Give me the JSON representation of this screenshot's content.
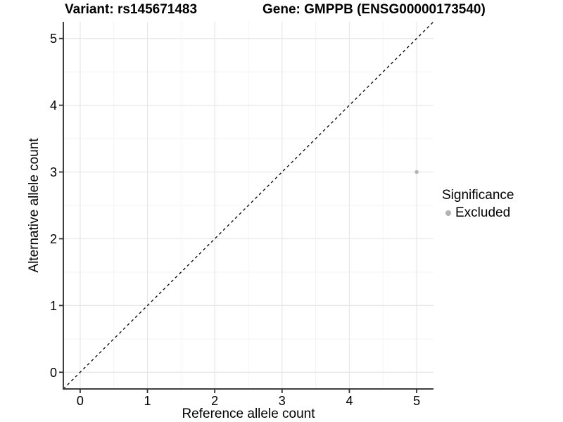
{
  "titles": {
    "variant": "Variant: rs145671483",
    "gene": "Gene: GMPPB (ENSG00000173540)"
  },
  "axes": {
    "x_label": "Reference allele count",
    "y_label": "Alternative allele count"
  },
  "legend": {
    "title": "Significance",
    "items": [
      {
        "label": "Excluded",
        "color": "#b3b3b3"
      }
    ]
  },
  "colors": {
    "background": "#ffffff",
    "axis_line": "#3f3f3f",
    "tick_mark": "#333333",
    "grid_major": "#e6e6e6",
    "grid_minor": "#f3f3f3",
    "reference_line": "#000000",
    "point": "#b3b3b3",
    "text": "#000000"
  },
  "chart_data": {
    "type": "scatter",
    "title": "Variant: rs145671483   Gene: GMPPB (ENSG00000173540)",
    "xlabel": "Reference allele count",
    "ylabel": "Alternative allele count",
    "xlim": [
      -0.25,
      5.25
    ],
    "ylim": [
      -0.25,
      5.25
    ],
    "xticks": [
      0,
      1,
      2,
      3,
      4,
      5
    ],
    "yticks": [
      0,
      1,
      2,
      3,
      4,
      5
    ],
    "xtick_labels": [
      "0",
      "1",
      "2",
      "3",
      "4",
      "5"
    ],
    "ytick_labels": [
      "0",
      "1",
      "2",
      "3",
      "4",
      "5"
    ],
    "grid": true,
    "minor_grid": true,
    "legend_position": "right",
    "series": [
      {
        "name": "Excluded",
        "color": "#b3b3b3",
        "points": [
          {
            "x": 5,
            "y": 3
          }
        ]
      }
    ],
    "reference_line": {
      "type": "abline",
      "slope": 1,
      "intercept": 0,
      "style": "dashed",
      "color": "#000000"
    }
  }
}
